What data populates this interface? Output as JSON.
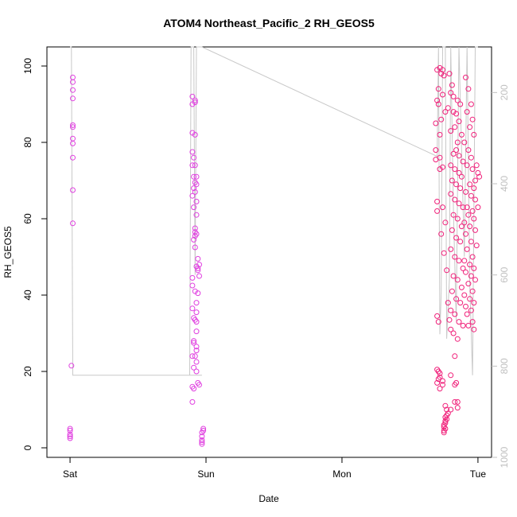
{
  "chart_data": {
    "type": "scatter",
    "title": "ATOM4 Northeast_Pacific_2 RH_GEOS5",
    "xlabel": "Date",
    "ylabel": "RH_GEOS5",
    "x_ticks": [
      {
        "value": 0,
        "label": "Sat"
      },
      {
        "value": 1,
        "label": "Sun"
      },
      {
        "value": 2,
        "label": "Mon"
      },
      {
        "value": 3,
        "label": "Tue"
      }
    ],
    "y_ticks": [
      0,
      20,
      40,
      60,
      80,
      100
    ],
    "y_right_ticks": [
      200,
      400,
      600,
      800,
      1000
    ],
    "xlim": [
      -0.17,
      3.1
    ],
    "ylim": [
      -2.5,
      105
    ],
    "y_right_lim": [
      1000,
      100
    ],
    "colors": {
      "points_early": "#e040e0",
      "points_late": "#f0207a",
      "line": "#c8c8c8",
      "right_axis": "#c0c0c0"
    },
    "series": [
      {
        "name": "",
        "kind": "points",
        "points": [
          [
            0.02,
            97
          ],
          [
            0.02,
            95.8
          ],
          [
            0.02,
            93.7
          ],
          [
            0.02,
            91.5
          ],
          [
            0.02,
            84.5
          ],
          [
            0.02,
            84
          ],
          [
            0.02,
            81
          ],
          [
            0.02,
            79.7
          ],
          [
            0.02,
            76
          ],
          [
            0.02,
            67.5
          ],
          [
            0.02,
            58.8
          ],
          [
            0.01,
            21.5
          ],
          [
            0.0,
            5
          ],
          [
            0.0,
            4.5
          ],
          [
            0.0,
            3.5
          ],
          [
            0.0,
            3
          ],
          [
            0.0,
            2.5
          ],
          [
            0.9,
            92
          ],
          [
            0.9,
            90
          ],
          [
            0.92,
            91
          ],
          [
            0.92,
            90.5
          ],
          [
            0.9,
            82.5
          ],
          [
            0.92,
            82
          ],
          [
            0.9,
            77.5
          ],
          [
            0.91,
            76
          ],
          [
            0.9,
            74
          ],
          [
            0.92,
            74
          ],
          [
            0.91,
            71
          ],
          [
            0.93,
            71
          ],
          [
            0.92,
            69.5
          ],
          [
            0.93,
            69
          ],
          [
            0.91,
            68
          ],
          [
            0.92,
            67
          ],
          [
            0.9,
            66
          ],
          [
            0.93,
            64.5
          ],
          [
            0.91,
            63
          ],
          [
            0.93,
            61
          ],
          [
            0.92,
            57.5
          ],
          [
            0.92,
            56.5
          ],
          [
            0.93,
            56
          ],
          [
            0.92,
            55.5
          ],
          [
            0.91,
            54.5
          ],
          [
            0.92,
            52.5
          ],
          [
            0.94,
            49.5
          ],
          [
            0.93,
            47.5
          ],
          [
            0.94,
            47
          ],
          [
            0.95,
            48
          ],
          [
            0.94,
            46.5
          ],
          [
            0.95,
            45
          ],
          [
            0.9,
            44.5
          ],
          [
            0.9,
            42.5
          ],
          [
            0.92,
            41
          ],
          [
            0.94,
            40.5
          ],
          [
            0.93,
            38
          ],
          [
            0.9,
            36.5
          ],
          [
            0.93,
            35.5
          ],
          [
            0.91,
            34
          ],
          [
            0.92,
            33.5
          ],
          [
            0.93,
            33
          ],
          [
            0.93,
            30.5
          ],
          [
            0.91,
            28
          ],
          [
            0.91,
            27.5
          ],
          [
            0.93,
            26.5
          ],
          [
            0.93,
            25.5
          ],
          [
            0.9,
            24
          ],
          [
            0.92,
            24
          ],
          [
            0.93,
            22.5
          ],
          [
            0.91,
            21
          ],
          [
            0.93,
            20
          ],
          [
            0.94,
            17
          ],
          [
            0.9,
            16
          ],
          [
            0.91,
            15.5
          ],
          [
            0.95,
            16.5
          ],
          [
            0.9,
            12
          ],
          [
            0.98,
            5
          ],
          [
            0.98,
            4.5
          ],
          [
            0.97,
            4
          ],
          [
            0.97,
            3
          ],
          [
            0.97,
            2
          ],
          [
            0.97,
            1.5
          ],
          [
            0.97,
            1
          ]
        ]
      },
      {
        "name": "",
        "kind": "points",
        "points": [
          [
            2.7,
            99
          ],
          [
            2.72,
            99.5
          ],
          [
            2.74,
            99
          ],
          [
            2.73,
            98
          ],
          [
            2.75,
            97.5
          ],
          [
            2.71,
            94
          ],
          [
            2.74,
            92.5
          ],
          [
            2.7,
            91
          ],
          [
            2.71,
            90
          ],
          [
            2.76,
            88
          ],
          [
            2.73,
            86
          ],
          [
            2.69,
            85
          ],
          [
            2.72,
            82
          ],
          [
            2.69,
            78
          ],
          [
            2.72,
            76
          ],
          [
            2.69,
            75.5
          ],
          [
            2.72,
            73
          ],
          [
            2.74,
            73.5
          ],
          [
            2.7,
            64.5
          ],
          [
            2.74,
            63
          ],
          [
            2.7,
            62
          ],
          [
            2.76,
            59
          ],
          [
            2.73,
            56
          ],
          [
            2.75,
            51
          ],
          [
            2.77,
            46.5
          ],
          [
            2.7,
            34.5
          ],
          [
            2.71,
            33
          ],
          [
            2.7,
            20.5
          ],
          [
            2.71,
            20
          ],
          [
            2.72,
            19.5
          ],
          [
            2.72,
            18.5
          ],
          [
            2.71,
            18
          ],
          [
            2.7,
            17
          ],
          [
            2.74,
            17.5
          ],
          [
            2.74,
            16.5
          ],
          [
            2.72,
            15.5
          ],
          [
            2.76,
            11
          ],
          [
            2.77,
            10
          ],
          [
            2.78,
            9
          ],
          [
            2.77,
            8.5
          ],
          [
            2.76,
            8
          ],
          [
            2.77,
            7.5
          ],
          [
            2.76,
            7
          ],
          [
            2.76,
            6.5
          ],
          [
            2.75,
            6
          ],
          [
            2.75,
            5.5
          ],
          [
            2.76,
            5
          ],
          [
            2.75,
            4.5
          ],
          [
            2.75,
            4
          ],
          [
            2.79,
            98
          ],
          [
            2.81,
            95
          ],
          [
            2.8,
            93
          ],
          [
            2.82,
            92
          ],
          [
            2.85,
            91
          ],
          [
            2.87,
            90
          ],
          [
            2.78,
            89
          ],
          [
            2.82,
            88
          ],
          [
            2.84,
            87.5
          ],
          [
            2.86,
            85.5
          ],
          [
            2.83,
            84
          ],
          [
            2.8,
            83
          ],
          [
            2.88,
            82
          ],
          [
            2.85,
            80
          ],
          [
            2.84,
            78
          ],
          [
            2.82,
            77
          ],
          [
            2.86,
            76.5
          ],
          [
            2.89,
            75
          ],
          [
            2.8,
            74
          ],
          [
            2.83,
            73
          ],
          [
            2.86,
            72
          ],
          [
            2.88,
            71
          ],
          [
            2.81,
            70
          ],
          [
            2.84,
            69
          ],
          [
            2.87,
            68
          ],
          [
            2.8,
            66.5
          ],
          [
            2.83,
            65
          ],
          [
            2.86,
            64
          ],
          [
            2.89,
            63
          ],
          [
            2.82,
            61
          ],
          [
            2.85,
            60
          ],
          [
            2.88,
            58
          ],
          [
            2.81,
            57
          ],
          [
            2.84,
            55
          ],
          [
            2.87,
            54
          ],
          [
            2.8,
            52
          ],
          [
            2.83,
            50
          ],
          [
            2.86,
            49
          ],
          [
            2.89,
            47
          ],
          [
            2.82,
            45
          ],
          [
            2.85,
            44
          ],
          [
            2.88,
            42
          ],
          [
            2.81,
            41
          ],
          [
            2.84,
            39
          ],
          [
            2.87,
            38
          ],
          [
            2.8,
            36
          ],
          [
            2.83,
            35
          ],
          [
            2.86,
            33
          ],
          [
            2.89,
            32
          ],
          [
            2.8,
            31
          ],
          [
            2.82,
            30
          ],
          [
            2.85,
            28.5
          ],
          [
            2.78,
            38
          ],
          [
            2.79,
            33.5
          ],
          [
            2.83,
            24
          ],
          [
            2.8,
            19
          ],
          [
            2.84,
            17
          ],
          [
            2.83,
            16.5
          ],
          [
            2.83,
            12
          ],
          [
            2.85,
            12
          ],
          [
            2.85,
            10.5
          ],
          [
            2.8,
            10
          ],
          [
            2.91,
            97
          ],
          [
            2.93,
            94
          ],
          [
            2.95,
            90
          ],
          [
            2.92,
            88
          ],
          [
            2.96,
            86
          ],
          [
            2.94,
            84
          ],
          [
            2.97,
            82
          ],
          [
            2.9,
            80
          ],
          [
            2.93,
            78
          ],
          [
            2.95,
            76
          ],
          [
            2.92,
            74
          ],
          [
            2.96,
            73
          ],
          [
            2.99,
            74
          ],
          [
            3.0,
            72
          ],
          [
            3.01,
            71
          ],
          [
            2.98,
            70
          ],
          [
            2.94,
            69
          ],
          [
            2.97,
            68
          ],
          [
            2.91,
            67
          ],
          [
            2.95,
            66
          ],
          [
            2.98,
            65
          ],
          [
            2.92,
            63
          ],
          [
            2.96,
            62
          ],
          [
            3.0,
            63
          ],
          [
            2.93,
            61
          ],
          [
            2.97,
            60
          ],
          [
            2.9,
            59
          ],
          [
            2.94,
            58
          ],
          [
            2.98,
            57
          ],
          [
            2.91,
            56
          ],
          [
            2.95,
            54
          ],
          [
            2.99,
            53
          ],
          [
            2.92,
            52
          ],
          [
            2.96,
            50
          ],
          [
            2.9,
            49
          ],
          [
            2.94,
            48
          ],
          [
            2.97,
            47
          ],
          [
            2.91,
            46
          ],
          [
            2.95,
            45
          ],
          [
            2.98,
            44
          ],
          [
            2.93,
            43
          ],
          [
            2.96,
            41
          ],
          [
            2.9,
            40
          ],
          [
            2.94,
            39
          ],
          [
            2.97,
            38
          ],
          [
            2.91,
            37
          ],
          [
            2.95,
            36
          ],
          [
            2.92,
            35
          ],
          [
            2.96,
            33
          ],
          [
            2.93,
            32
          ],
          [
            2.97,
            31
          ]
        ]
      },
      {
        "name": "",
        "kind": "line",
        "axis": "right",
        "points": [
          [
            0.0,
            100
          ],
          [
            0.01,
            100
          ],
          [
            0.02,
            820
          ],
          [
            0.97,
            820
          ],
          [
            0.88,
            820
          ],
          [
            0.89,
            100
          ],
          [
            0.91,
            100
          ],
          [
            0.92,
            600
          ],
          [
            0.93,
            100
          ],
          [
            0.97,
            100
          ],
          [
            2.7,
            340
          ],
          [
            2.71,
            100
          ],
          [
            2.72,
            730
          ],
          [
            2.73,
            640
          ],
          [
            2.74,
            100
          ],
          [
            2.76,
            100
          ],
          [
            2.77,
            740
          ],
          [
            2.79,
            610
          ],
          [
            2.8,
            100
          ],
          [
            2.82,
            460
          ],
          [
            2.84,
            700
          ],
          [
            2.86,
            100
          ],
          [
            2.88,
            330
          ],
          [
            2.9,
            560
          ],
          [
            2.92,
            100
          ],
          [
            2.94,
            620
          ],
          [
            2.96,
            820
          ],
          [
            2.98,
            100
          ],
          [
            3.0,
            100
          ]
        ]
      }
    ]
  }
}
